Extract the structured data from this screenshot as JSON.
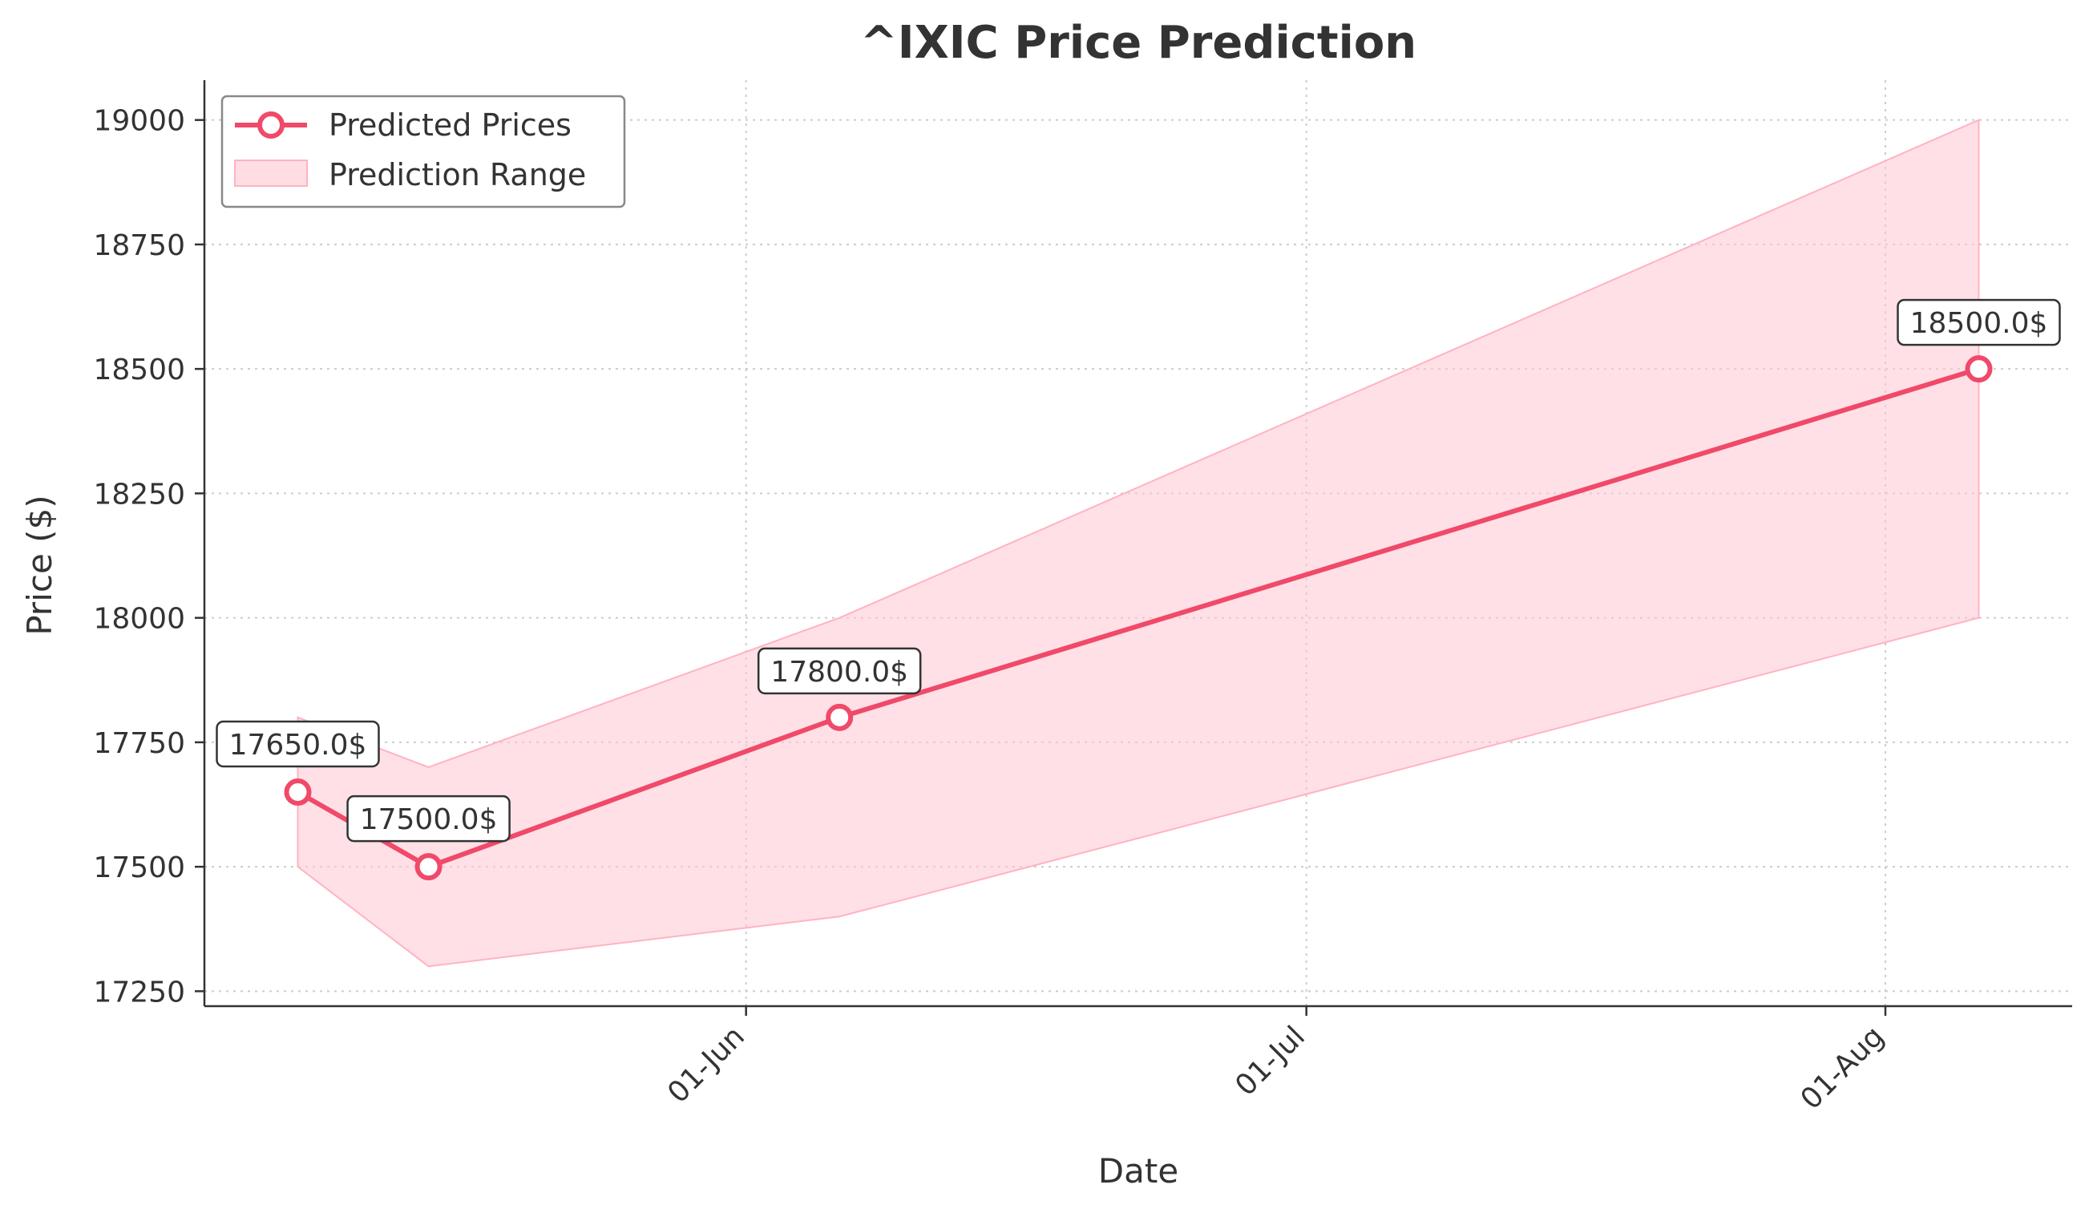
{
  "chart_data": {
    "type": "line",
    "title": "^IXIC Price Prediction",
    "xlabel": "Date",
    "ylabel": "Price ($)",
    "x": [
      "2024-05-08",
      "2024-05-15",
      "2024-06-06",
      "2024-08-06"
    ],
    "series": [
      {
        "name": "Predicted Prices",
        "values": [
          17650,
          17500,
          17800,
          18500
        ],
        "labels": [
          "17650.0$",
          "17500.0$",
          "17800.0$",
          "18500.0$"
        ],
        "color": "#f0496a"
      }
    ],
    "range": {
      "name": "Prediction Range",
      "lower": [
        17500,
        17300,
        17400,
        18000
      ],
      "upper": [
        17800,
        17700,
        18000,
        19000
      ],
      "color": "#ffc7d1"
    },
    "ylim": [
      17220,
      19080
    ],
    "xlim": [
      "2024-05-03",
      "2024-08-11"
    ],
    "yticks": [
      17250,
      17500,
      17750,
      18000,
      18250,
      18500,
      18750,
      19000
    ],
    "xticks": [
      {
        "date": "2024-06-01",
        "label": "01-Jun"
      },
      {
        "date": "2024-07-01",
        "label": "01-Jul"
      },
      {
        "date": "2024-08-01",
        "label": "01-Aug"
      }
    ],
    "grid": true,
    "legend_position": "top-left"
  }
}
